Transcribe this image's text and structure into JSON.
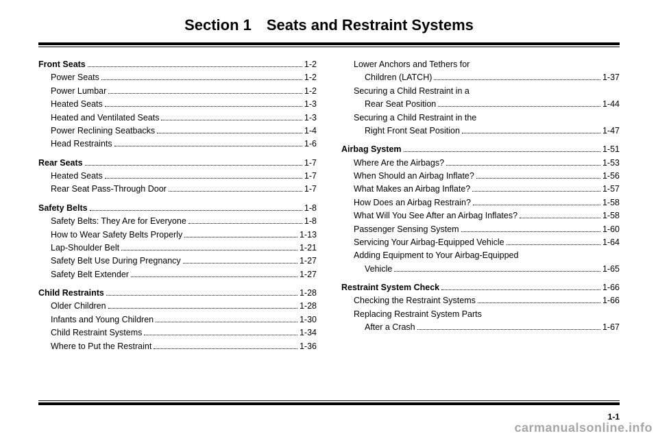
{
  "title": "Section 1 Seats and Restraint Systems",
  "page_number": "1-1",
  "watermark": "carmanualsonline.info",
  "columns": [
    [
      {
        "head": {
          "label": "Front Seats",
          "page": "1-2"
        },
        "items": [
          {
            "label": "Power Seats",
            "page": "1-2"
          },
          {
            "label": "Power Lumbar",
            "page": "1-2"
          },
          {
            "label": "Heated Seats",
            "page": "1-3"
          },
          {
            "label": "Heated and Ventilated Seats",
            "page": "1-3"
          },
          {
            "label": "Power Reclining Seatbacks",
            "page": "1-4"
          },
          {
            "label": "Head Restraints",
            "page": "1-6"
          }
        ]
      },
      {
        "head": {
          "label": "Rear Seats",
          "page": "1-7"
        },
        "items": [
          {
            "label": "Heated Seats",
            "page": "1-7"
          },
          {
            "label": "Rear Seat Pass-Through Door",
            "page": "1-7"
          }
        ]
      },
      {
        "head": {
          "label": "Safety Belts",
          "page": "1-8"
        },
        "items": [
          {
            "label": "Safety Belts: They Are for Everyone",
            "page": "1-8"
          },
          {
            "label": "How to Wear Safety Belts Properly",
            "page": "1-13"
          },
          {
            "label": "Lap-Shoulder Belt",
            "page": "1-21"
          },
          {
            "label": "Safety Belt Use During Pregnancy",
            "page": "1-27"
          },
          {
            "label": "Safety Belt Extender",
            "page": "1-27"
          }
        ]
      },
      {
        "head": {
          "label": "Child Restraints",
          "page": "1-28"
        },
        "items": [
          {
            "label": "Older Children",
            "page": "1-28"
          },
          {
            "label": "Infants and Young Children",
            "page": "1-30"
          },
          {
            "label": "Child Restraint Systems",
            "page": "1-34"
          },
          {
            "label": "Where to Put the Restraint",
            "page": "1-36"
          }
        ]
      }
    ],
    [
      {
        "items": [
          {
            "label": "Lower Anchors and Tethers for",
            "cont": true
          },
          {
            "label": "Children (LATCH)",
            "page": "1-37",
            "indent2": true
          },
          {
            "label": "Securing a Child Restraint in a",
            "cont": true
          },
          {
            "label": "Rear Seat Position",
            "page": "1-44",
            "indent2": true
          },
          {
            "label": "Securing a Child Restraint in the",
            "cont": true
          },
          {
            "label": "Right Front Seat Position",
            "page": "1-47",
            "indent2": true
          }
        ]
      },
      {
        "head": {
          "label": "Airbag System",
          "page": "1-51"
        },
        "items": [
          {
            "label": "Where Are the Airbags?",
            "page": "1-53"
          },
          {
            "label": "When Should an Airbag Inflate?",
            "page": "1-56"
          },
          {
            "label": "What Makes an Airbag Inflate?",
            "page": "1-57"
          },
          {
            "label": "How Does an Airbag Restrain?",
            "page": "1-58"
          },
          {
            "label": "What Will You See After an Airbag Inflates?",
            "page": "1-58"
          },
          {
            "label": "Passenger Sensing System",
            "page": "1-60"
          },
          {
            "label": "Servicing Your Airbag-Equipped Vehicle",
            "page": "1-64"
          },
          {
            "label": "Adding Equipment to Your Airbag-Equipped",
            "cont": true
          },
          {
            "label": "Vehicle",
            "page": "1-65",
            "indent2": true
          }
        ]
      },
      {
        "head": {
          "label": "Restraint System Check",
          "page": "1-66"
        },
        "items": [
          {
            "label": "Checking the Restraint Systems",
            "page": "1-66"
          },
          {
            "label": "Replacing Restraint System Parts",
            "cont": true
          },
          {
            "label": "After a Crash",
            "page": "1-67",
            "indent2": true
          }
        ]
      }
    ]
  ]
}
